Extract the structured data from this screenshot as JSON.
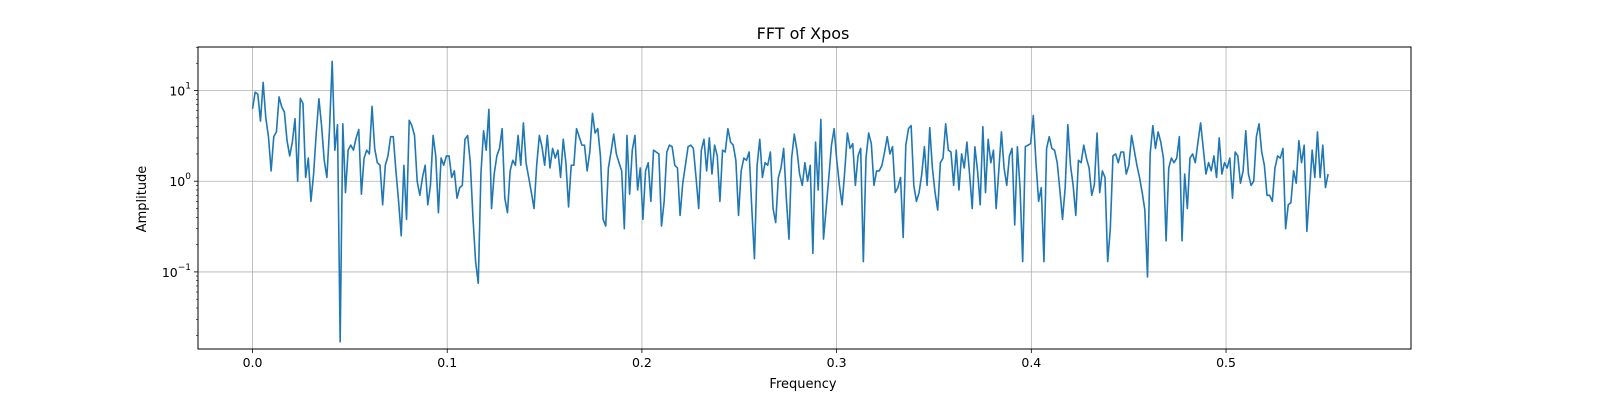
{
  "chart_data": {
    "type": "line",
    "title": "FFT of Xpos",
    "xlabel": "Frequency",
    "ylabel": "Amplitude",
    "xlim": [
      -0.028,
      0.595
    ],
    "ylim_log10": [
      -1.85,
      1.48
    ],
    "yscale": "log",
    "grid": true,
    "x_ticks": [
      {
        "value": 0.0,
        "label": "0.0"
      },
      {
        "value": 0.1,
        "label": "0.1"
      },
      {
        "value": 0.2,
        "label": "0.2"
      },
      {
        "value": 0.3,
        "label": "0.3"
      },
      {
        "value": 0.4,
        "label": "0.4"
      },
      {
        "value": 0.5,
        "label": "0.5"
      }
    ],
    "y_ticks": [
      {
        "exp": -1,
        "base": "10",
        "sup": "−1"
      },
      {
        "exp": 0,
        "base": "10",
        "sup": "0"
      },
      {
        "exp": 1,
        "base": "10",
        "sup": "1"
      }
    ],
    "series": [
      {
        "color": "#1f77b4",
        "x_start": 0.0,
        "x_step": 0.001364,
        "values": [
          6.3,
          9.6,
          9.1,
          4.6,
          12.3,
          5.0,
          3.1,
          1.3,
          3.1,
          3.5,
          8.5,
          6.6,
          5.8,
          2.8,
          1.9,
          2.7,
          4.9,
          1.0,
          8.2,
          7.2,
          1.1,
          1.8,
          0.6,
          1.2,
          3.4,
          8.1,
          4.1,
          1.7,
          1.1,
          3.8,
          21.0,
          2.2,
          4.2,
          0.017,
          4.3,
          0.75,
          2.2,
          2.5,
          2.2,
          3.0,
          3.7,
          0.72,
          1.8,
          2.2,
          2.0,
          6.7,
          2.3,
          1.6,
          1.5,
          0.55,
          1.5,
          1.9,
          3.1,
          3.1,
          1.3,
          0.6,
          0.25,
          1.5,
          0.38,
          4.7,
          4.1,
          3.2,
          1.0,
          0.7,
          1.1,
          1.5,
          0.55,
          0.9,
          3.2,
          1.9,
          0.45,
          1.8,
          1.5,
          1.9,
          1.9,
          1.1,
          1.3,
          0.65,
          0.85,
          0.9,
          2.9,
          3.2,
          1.6,
          0.4,
          0.13,
          0.075,
          1.2,
          3.6,
          2.2,
          6.2,
          0.5,
          1.2,
          1.9,
          2.3,
          3.8,
          0.65,
          0.45,
          1.3,
          1.7,
          1.5,
          3.2,
          1.5,
          4.4,
          1.6,
          1.1,
          0.75,
          0.5,
          1.5,
          3.2,
          2.4,
          1.5,
          3.2,
          1.4,
          2.3,
          1.8,
          2.2,
          1.1,
          2.9,
          1.6,
          0.52,
          1.5,
          1.5,
          3.8,
          3.1,
          2.5,
          2.5,
          1.3,
          2.1,
          5.6,
          3.4,
          3.8,
          1.9,
          0.38,
          0.32,
          1.4,
          2.1,
          3.3,
          2.0,
          1.6,
          1.3,
          0.3,
          3.2,
          0.72,
          2.2,
          3.2,
          0.8,
          1.4,
          0.38,
          1.3,
          1.6,
          0.6,
          2.2,
          2.1,
          2.0,
          0.32,
          0.6,
          2.1,
          2.5,
          2.4,
          1.5,
          1.4,
          0.42,
          0.95,
          1.5,
          2.4,
          2.5,
          2.3,
          1.1,
          0.5,
          2.2,
          2.9,
          1.3,
          3.0,
          1.2,
          2.5,
          1.9,
          0.6,
          2.2,
          2.1,
          3.8,
          2.7,
          2.5,
          1.7,
          0.42,
          1.3,
          1.8,
          1.7,
          2.1,
          0.5,
          0.14,
          1.5,
          2.9,
          1.1,
          1.6,
          1.5,
          2.1,
          0.5,
          0.35,
          1.1,
          1.4,
          2.3,
          0.65,
          0.23,
          1.8,
          3.3,
          2.2,
          1.2,
          0.9,
          1.6,
          1.0,
          1.5,
          0.16,
          2.7,
          0.8,
          4.8,
          0.23,
          0.5,
          1.1,
          2.5,
          3.8,
          1.7,
          0.9,
          0.55,
          1.3,
          3.4,
          2.3,
          2.6,
          0.9,
          1.9,
          2.3,
          0.13,
          1.8,
          3.4,
          2.6,
          0.9,
          1.3,
          1.3,
          1.5,
          2.1,
          3.1,
          2.0,
          2.4,
          0.75,
          0.85,
          1.1,
          0.24,
          2.5,
          3.8,
          4.1,
          0.9,
          0.6,
          0.75,
          1.2,
          2.4,
          0.9,
          3.9,
          1.4,
          0.75,
          0.48,
          1.6,
          1.8,
          4.3,
          2.2,
          2.1,
          0.9,
          2.2,
          0.8,
          2.0,
          1.4,
          2.7,
          1.2,
          0.5,
          2.4,
          1.3,
          0.55,
          4.0,
          0.75,
          2.9,
          1.6,
          2.2,
          0.5,
          1.3,
          3.5,
          1.4,
          0.9,
          1.9,
          2.3,
          0.33,
          2.4,
          0.85,
          0.13,
          2.4,
          2.5,
          2.6,
          5.3,
          1.6,
          0.6,
          0.85,
          0.13,
          2.3,
          3.1,
          2.3,
          2.2,
          1.6,
          0.8,
          0.38,
          0.85,
          4.2,
          1.5,
          0.9,
          0.42,
          1.7,
          1.6,
          2.5,
          1.8,
          1.4,
          0.7,
          0.92,
          3.4,
          0.75,
          1.3,
          1.1,
          0.13,
          0.3,
          1.9,
          2.0,
          1.6,
          2.1,
          2.1,
          1.2,
          1.5,
          3.2,
          2.2,
          1.5,
          1.1,
          0.75,
          0.48,
          0.088,
          2.0,
          4.1,
          2.3,
          3.5,
          2.7,
          1.8,
          0.22,
          1.4,
          1.8,
          1.6,
          1.8,
          3.1,
          0.22,
          1.2,
          0.5,
          1.8,
          2.0,
          1.6,
          2.7,
          4.4,
          2.3,
          1.2,
          1.6,
          1.3,
          1.9,
          1.1,
          3.0,
          1.2,
          1.6,
          1.4,
          1.8,
          0.65,
          2.1,
          1.9,
          0.95,
          1.3,
          3.6,
          1.2,
          0.9,
          1.0,
          3.1,
          4.3,
          2.1,
          1.5,
          0.7,
          0.7,
          0.6,
          1.4,
          1.9,
          1.8,
          2.3,
          0.3,
          0.55,
          0.58,
          1.3,
          0.95,
          2.8,
          1.6,
          2.5,
          0.28,
          0.75,
          2.2,
          1.1,
          3.5,
          1.1,
          2.5,
          0.85,
          1.2
        ]
      }
    ]
  }
}
